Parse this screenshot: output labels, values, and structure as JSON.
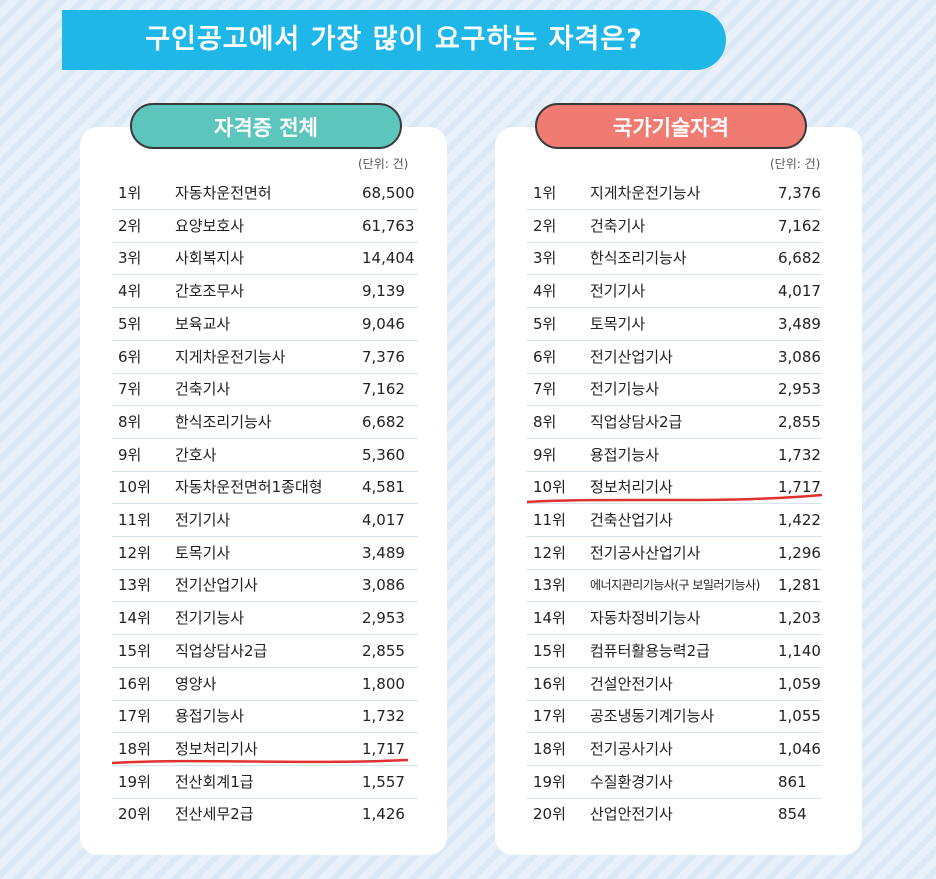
{
  "title": "구인공고에서 가장 많이 요구하는 자격은?",
  "panels": [
    {
      "header": "자격증 전체",
      "unit": "(단위: 건)",
      "rows": [
        [
          "1위",
          "자동차운전면허",
          "68,500"
        ],
        [
          "2위",
          "요양보호사",
          "61,763"
        ],
        [
          "3위",
          "사회복지사",
          "14,404"
        ],
        [
          "4위",
          "간호조무사",
          "9,139"
        ],
        [
          "5위",
          "보육교사",
          "9,046"
        ],
        [
          "6위",
          "지게차운전기능사",
          "7,376"
        ],
        [
          "7위",
          "건축기사",
          "7,162"
        ],
        [
          "8위",
          "한식조리기능사",
          "6,682"
        ],
        [
          "9위",
          "간호사",
          "5,360"
        ],
        [
          "10위",
          "자동차운전면허1종대형",
          "4,581"
        ],
        [
          "11위",
          "전기기사",
          "4,017"
        ],
        [
          "12위",
          "토목기사",
          "3,489"
        ],
        [
          "13위",
          "전기산업기사",
          "3,086"
        ],
        [
          "14위",
          "전기기능사",
          "2,953"
        ],
        [
          "15위",
          "직업상담사2급",
          "2,855"
        ],
        [
          "16위",
          "영양사",
          "1,800"
        ],
        [
          "17위",
          "용접기능사",
          "1,732"
        ],
        [
          "18위",
          "정보처리기사",
          "1,717"
        ],
        [
          "19위",
          "전산회계1급",
          "1,557"
        ],
        [
          "20위",
          "전산세무2급",
          "1,426"
        ]
      ]
    },
    {
      "header": "국가기술자격",
      "unit": "(단위: 건)",
      "rows": [
        [
          "1위",
          "지게차운전기능사",
          "7,376"
        ],
        [
          "2위",
          "건축기사",
          "7,162"
        ],
        [
          "3위",
          "한식조리기능사",
          "6,682"
        ],
        [
          "4위",
          "전기기사",
          "4,017"
        ],
        [
          "5위",
          "토목기사",
          "3,489"
        ],
        [
          "6위",
          "전기산업기사",
          "3,086"
        ],
        [
          "7위",
          "전기기능사",
          "2,953"
        ],
        [
          "8위",
          "직업상담사2급",
          "2,855"
        ],
        [
          "9위",
          "용접기능사",
          "1,732"
        ],
        [
          "10위",
          "정보처리기사",
          "1,717"
        ],
        [
          "11위",
          "건축산업기사",
          "1,422"
        ],
        [
          "12위",
          "전기공사산업기사",
          "1,296"
        ],
        [
          "13위",
          "에너지관리기능사(구 보일러기능사)",
          "1,281"
        ],
        [
          "14위",
          "자동차정비기능사",
          "1,203"
        ],
        [
          "15위",
          "컴퓨터활용능력2급",
          "1,140"
        ],
        [
          "16위",
          "건설안전기사",
          "1,059"
        ],
        [
          "17위",
          "공조냉동기계기능사",
          "1,055"
        ],
        [
          "18위",
          "전기공사기사",
          "1,046"
        ],
        [
          "19위",
          "수질환경기사",
          "861"
        ],
        [
          "20위",
          "산업안전기사",
          "854"
        ]
      ]
    }
  ]
}
